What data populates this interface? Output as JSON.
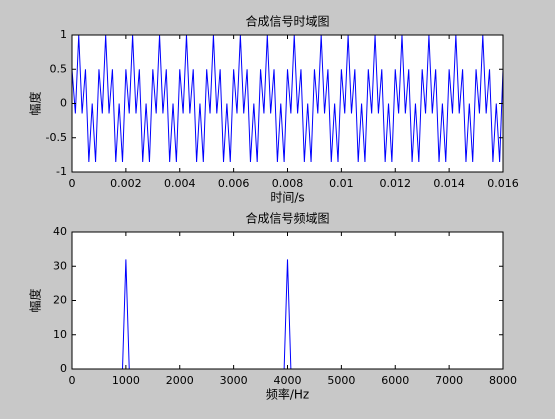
{
  "chart_data": [
    {
      "type": "line",
      "title": "合成信号时域图",
      "x_label": "时间/s",
      "y_label": "幅度",
      "color": "#0000ff",
      "x": [
        0,
        0.000125,
        0.00025,
        0.000375,
        0.0005,
        0.000625,
        0.00075,
        0.000875,
        0.001,
        0.001125,
        0.00125,
        0.001375,
        0.0015,
        0.001625,
        0.00175,
        0.001875,
        0.002,
        0.002125,
        0.00225,
        0.002375,
        0.0025,
        0.002625,
        0.00275,
        0.002875,
        0.003,
        0.003125,
        0.00325,
        0.003375,
        0.0035,
        0.003625,
        0.00375,
        0.003875,
        0.004,
        0.004125,
        0.00425,
        0.004375,
        0.0045,
        0.004625,
        0.00475,
        0.004875,
        0.005,
        0.005125,
        0.00525,
        0.005375,
        0.0055,
        0.005625,
        0.00575,
        0.005875,
        0.006,
        0.006125,
        0.00625,
        0.006375,
        0.0065,
        0.006625,
        0.00675,
        0.006875,
        0.007,
        0.007125,
        0.00725,
        0.007375,
        0.0075,
        0.007625,
        0.00775,
        0.007875,
        0.008,
        0.008125,
        0.00825,
        0.008375,
        0.0085,
        0.008625,
        0.00875,
        0.008875,
        0.009,
        0.009125,
        0.00925,
        0.009375,
        0.0095,
        0.009625,
        0.00975,
        0.009875,
        0.01,
        0.010125,
        0.01025,
        0.010375,
        0.0105,
        0.010625,
        0.01075,
        0.010875,
        0.011,
        0.011125,
        0.01125,
        0.011375,
        0.0115,
        0.011625,
        0.01175,
        0.011875,
        0.012,
        0.012125,
        0.01225,
        0.012375,
        0.0125,
        0.012625,
        0.01275,
        0.012875,
        0.013,
        0.013125,
        0.01325,
        0.013375,
        0.0135,
        0.013625,
        0.01375,
        0.013875,
        0.014,
        0.014125,
        0.01425,
        0.014375,
        0.0145,
        0.014625,
        0.01475,
        0.014875,
        0.015,
        0.015125,
        0.01525,
        0.015375,
        0.0155,
        0.015625,
        0.01575,
        0.015875,
        0.016
      ],
      "values": [
        0.5,
        -0.146,
        1,
        -0.146,
        0.5,
        -0.854,
        0,
        -0.854,
        0.5,
        -0.146,
        1,
        -0.146,
        0.5,
        -0.854,
        0,
        -0.854,
        0.5,
        -0.146,
        1,
        -0.146,
        0.5,
        -0.854,
        0,
        -0.854,
        0.5,
        -0.146,
        1,
        -0.146,
        0.5,
        -0.854,
        0,
        -0.854,
        0.5,
        -0.146,
        1,
        -0.146,
        0.5,
        -0.854,
        0,
        -0.854,
        0.5,
        -0.146,
        1,
        -0.146,
        0.5,
        -0.854,
        0,
        -0.854,
        0.5,
        -0.146,
        1,
        -0.146,
        0.5,
        -0.854,
        0,
        -0.854,
        0.5,
        -0.146,
        1,
        -0.146,
        0.5,
        -0.854,
        0,
        -0.854,
        0.5,
        -0.146,
        1,
        -0.146,
        0.5,
        -0.854,
        0,
        -0.854,
        0.5,
        -0.146,
        1,
        -0.146,
        0.5,
        -0.854,
        0,
        -0.854,
        0.5,
        -0.146,
        1,
        -0.146,
        0.5,
        -0.854,
        0,
        -0.854,
        0.5,
        -0.146,
        1,
        -0.146,
        0.5,
        -0.854,
        0,
        -0.854,
        0.5,
        -0.146,
        1,
        -0.146,
        0.5,
        -0.854,
        0,
        -0.854,
        0.5,
        -0.146,
        1,
        -0.146,
        0.5,
        -0.854,
        0,
        -0.854,
        0.5,
        -0.146,
        1,
        -0.146,
        0.5,
        -0.854,
        0,
        -0.854,
        0.5,
        -0.146,
        1,
        -0.146,
        0.5,
        -0.854,
        0,
        -0.854,
        0.5
      ],
      "xlim": [
        0,
        0.016
      ],
      "xticks": [
        0,
        0.002,
        0.004,
        0.006,
        0.008,
        0.01,
        0.012,
        0.014,
        0.016
      ],
      "ylim": [
        -1,
        1
      ],
      "yticks": [
        -1,
        -0.5,
        0,
        0.5,
        1
      ]
    },
    {
      "type": "line",
      "title": "合成信号频域图",
      "x_label": "频率/Hz",
      "y_label": "幅度",
      "color": "#0000ff",
      "x": [
        0,
        937.5,
        1000,
        1062.5,
        3937.5,
        4000,
        4062.5,
        8000
      ],
      "values": [
        0,
        0,
        32,
        0,
        0,
        32,
        0,
        0
      ],
      "xlim": [
        0,
        8000
      ],
      "xticks": [
        0,
        1000,
        2000,
        3000,
        4000,
        5000,
        6000,
        7000,
        8000
      ],
      "ylim": [
        0,
        40
      ],
      "yticks": [
        0,
        10,
        20,
        30,
        40
      ]
    }
  ]
}
